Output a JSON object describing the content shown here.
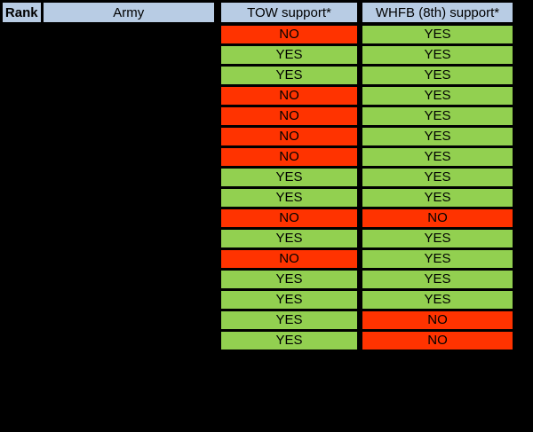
{
  "chart_data": {
    "type": "table",
    "columns": [
      "Rank",
      "Army",
      "TOW support*",
      "WHFB (8th) support*"
    ],
    "redacted_columns": [
      "Rank",
      "Army"
    ],
    "rows": [
      {
        "rank": "",
        "army": "",
        "tow": "NO",
        "whfb": "YES"
      },
      {
        "rank": "",
        "army": "",
        "tow": "YES",
        "whfb": "YES"
      },
      {
        "rank": "",
        "army": "",
        "tow": "YES",
        "whfb": "YES"
      },
      {
        "rank": "",
        "army": "",
        "tow": "NO",
        "whfb": "YES"
      },
      {
        "rank": "",
        "army": "",
        "tow": "NO",
        "whfb": "YES"
      },
      {
        "rank": "",
        "army": "",
        "tow": "NO",
        "whfb": "YES"
      },
      {
        "rank": "",
        "army": "",
        "tow": "NO",
        "whfb": "YES"
      },
      {
        "rank": "",
        "army": "",
        "tow": "YES",
        "whfb": "YES"
      },
      {
        "rank": "",
        "army": "",
        "tow": "YES",
        "whfb": "YES"
      },
      {
        "rank": "",
        "army": "",
        "tow": "NO",
        "whfb": "NO"
      },
      {
        "rank": "",
        "army": "",
        "tow": "YES",
        "whfb": "YES"
      },
      {
        "rank": "",
        "army": "",
        "tow": "NO",
        "whfb": "YES"
      },
      {
        "rank": "",
        "army": "",
        "tow": "YES",
        "whfb": "YES"
      },
      {
        "rank": "",
        "army": "",
        "tow": "YES",
        "whfb": "YES"
      },
      {
        "rank": "",
        "army": "",
        "tow": "YES",
        "whfb": "NO"
      },
      {
        "rank": "",
        "army": "",
        "tow": "YES",
        "whfb": "NO"
      }
    ],
    "yes_label": "YES",
    "no_label": "NO"
  },
  "colors": {
    "background": "#000000",
    "header_bg": "#b8cce4",
    "yes_bg": "#92d050",
    "no_bg": "#ff3300",
    "border": "#000000",
    "text": "#000000"
  }
}
